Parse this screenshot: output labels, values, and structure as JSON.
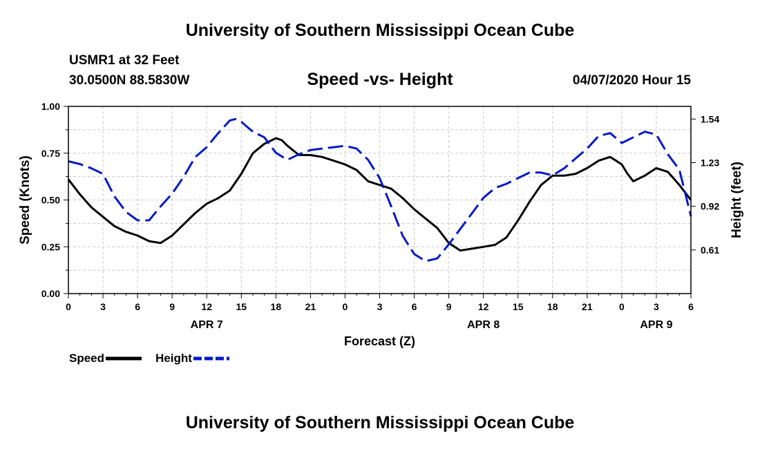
{
  "header": {
    "title": "University of Southern Mississippi Ocean Cube",
    "station": "USMR1 at 32 Feet",
    "coords": "30.0500N 88.5830W",
    "subtitle": "Speed -vs- Height",
    "datestamp": "04/07/2020 Hour 15",
    "footer_title": "University of Southern Mississippi Ocean Cube"
  },
  "chart_data": {
    "type": "line",
    "title": "Speed -vs- Height",
    "xlabel": "Forecast (Z)",
    "ylabel_left": "Speed (Knots)",
    "ylabel_right": "Height (feet)",
    "xlim": [
      0,
      54
    ],
    "ylim_left": [
      0,
      1
    ],
    "ylim_right": [
      0.3,
      1.63
    ],
    "x_ticks": [
      0,
      3,
      6,
      9,
      12,
      15,
      18,
      21,
      24,
      27,
      30,
      33,
      36,
      39,
      42,
      45,
      48,
      51,
      54
    ],
    "x_tick_labels": [
      "0",
      "3",
      "6",
      "9",
      "12",
      "15",
      "18",
      "21",
      "0",
      "3",
      "6",
      "9",
      "12",
      "15",
      "18",
      "21",
      "0",
      "3",
      "6"
    ],
    "date_labels": [
      {
        "x": 12,
        "label": "APR 7"
      },
      {
        "x": 36,
        "label": "APR 8"
      },
      {
        "x": 51,
        "label": "APR 9"
      }
    ],
    "y_left_ticks": [
      0,
      0.25,
      0.5,
      0.75,
      1.0
    ],
    "y_left_tick_labels": [
      "0.00",
      "0.25",
      "0.50",
      "0.75",
      "1.00"
    ],
    "y_right_ticks": [
      0.61,
      0.92,
      1.23,
      1.54
    ],
    "y_right_tick_labels": [
      "0.61",
      "0.92",
      "1.23",
      "1.54"
    ],
    "grid": true,
    "legend_position": "bottom-left",
    "series": [
      {
        "name": "Speed",
        "axis": "left",
        "color": "#000000",
        "style": "solid",
        "x": [
          0,
          1,
          2,
          3,
          4,
          5,
          6,
          7,
          8,
          9,
          10,
          11,
          12,
          13,
          14,
          15,
          16,
          17,
          18,
          18.5,
          19,
          20,
          21,
          22,
          23,
          24,
          25,
          26,
          27,
          28,
          29,
          30,
          31,
          32,
          33,
          34,
          35,
          36,
          37,
          38,
          39,
          40,
          41,
          42,
          43,
          44,
          45,
          46,
          47,
          48,
          48.5,
          49,
          50,
          51,
          52,
          53,
          54
        ],
        "values": [
          0.61,
          0.53,
          0.46,
          0.41,
          0.36,
          0.33,
          0.31,
          0.28,
          0.27,
          0.31,
          0.37,
          0.43,
          0.48,
          0.51,
          0.55,
          0.64,
          0.75,
          0.8,
          0.83,
          0.82,
          0.79,
          0.74,
          0.74,
          0.73,
          0.71,
          0.69,
          0.66,
          0.6,
          0.58,
          0.56,
          0.51,
          0.45,
          0.4,
          0.35,
          0.27,
          0.23,
          0.24,
          0.25,
          0.26,
          0.3,
          0.39,
          0.49,
          0.58,
          0.63,
          0.63,
          0.64,
          0.67,
          0.71,
          0.73,
          0.69,
          0.64,
          0.6,
          0.63,
          0.67,
          0.65,
          0.58,
          0.5
        ]
      },
      {
        "name": "Height",
        "axis": "right",
        "color": "#0018c8",
        "style": "dashed",
        "x": [
          0,
          1,
          2,
          3,
          4,
          5,
          6,
          7,
          8,
          9,
          10,
          11,
          12,
          13,
          14,
          14.5,
          15,
          16,
          17,
          18,
          19,
          20,
          21,
          22,
          23,
          24,
          25,
          26,
          27,
          28,
          29,
          30,
          31,
          32,
          33,
          34,
          35,
          36,
          37,
          38,
          39,
          40,
          41,
          42,
          43,
          44,
          45,
          46,
          47,
          48,
          49,
          50,
          51,
          52,
          53,
          54
        ],
        "values": [
          1.24,
          1.22,
          1.19,
          1.15,
          0.99,
          0.88,
          0.82,
          0.82,
          0.92,
          1.01,
          1.13,
          1.27,
          1.34,
          1.44,
          1.53,
          1.54,
          1.52,
          1.45,
          1.41,
          1.3,
          1.25,
          1.29,
          1.32,
          1.33,
          1.34,
          1.35,
          1.33,
          1.25,
          1.12,
          0.92,
          0.71,
          0.58,
          0.53,
          0.55,
          0.65,
          0.76,
          0.87,
          0.98,
          1.05,
          1.08,
          1.12,
          1.16,
          1.16,
          1.14,
          1.19,
          1.26,
          1.33,
          1.42,
          1.44,
          1.37,
          1.41,
          1.45,
          1.43,
          1.29,
          1.18,
          0.85
        ]
      }
    ]
  }
}
